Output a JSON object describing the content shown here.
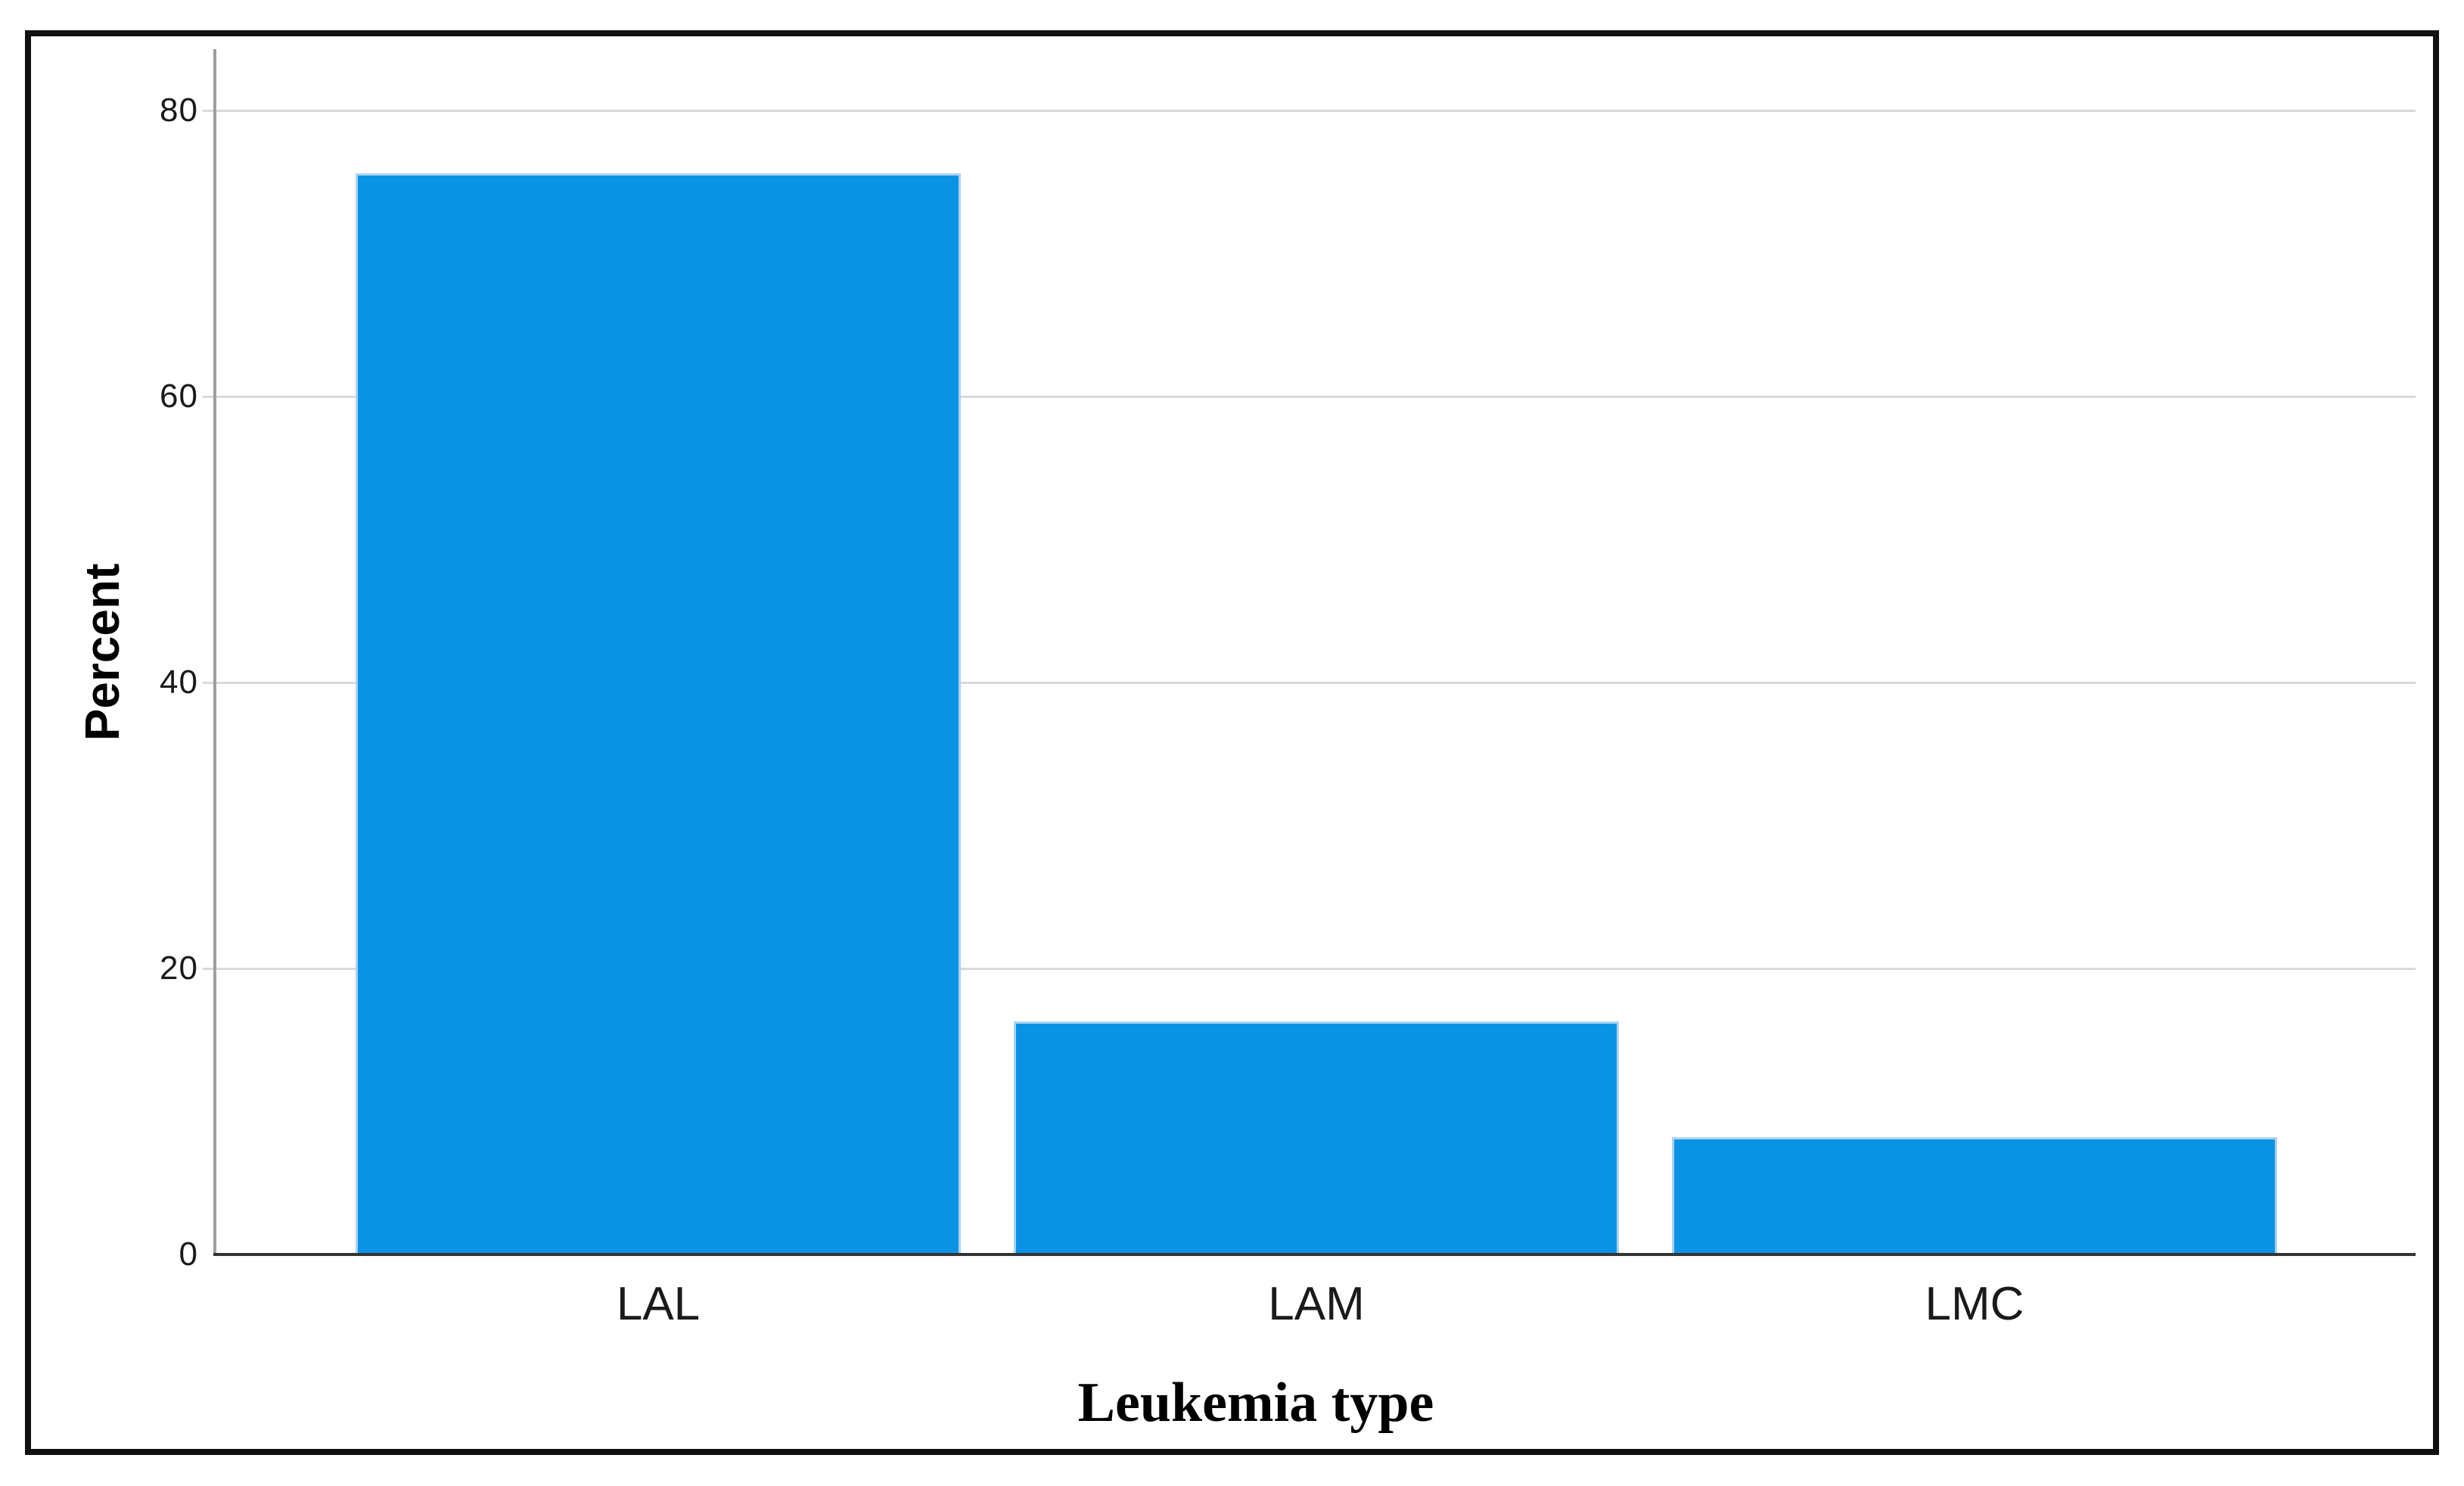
{
  "chart_data": {
    "type": "bar",
    "title": "",
    "categories": [
      "LAL",
      "LAM",
      "LMC"
    ],
    "values": [
      75.6,
      16.3,
      8.2
    ],
    "xlabel": "Leukemia type",
    "ylabel": "Percent",
    "ylim": [
      0,
      84.3
    ],
    "yticks": [
      0,
      20,
      40,
      60,
      80
    ],
    "grid": "horizontal",
    "legend": "none",
    "colors": {
      "bar_fill": "#0a93e4",
      "bar_border": "#abd3f0",
      "gridline": "#d9d9d9",
      "y_axis_line": "#9e9e9e",
      "x_axis_line": "#333333",
      "frame_border": "#111111",
      "label_text": "#1a1a1a"
    }
  }
}
